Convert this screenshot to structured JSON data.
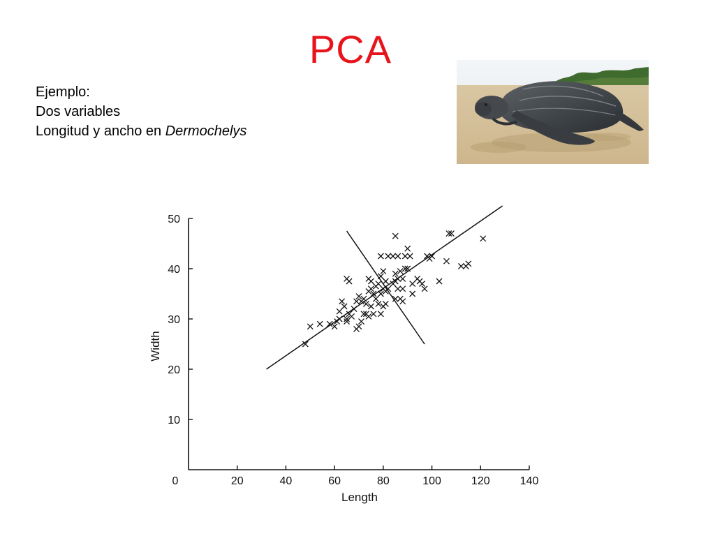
{
  "slide": {
    "title": "PCA",
    "intro": {
      "line1": "Ejemplo:",
      "line2": "Dos variables",
      "line3_prefix": "Longitud y ancho en ",
      "line3_italic": "Dermochelys"
    },
    "title_color": "#e8141c"
  },
  "photo": {
    "icon": "leatherback-turtle-photo"
  },
  "chart_data": {
    "type": "scatter",
    "title": "",
    "xlabel": "Length",
    "ylabel": "Width",
    "xlim": [
      0,
      140
    ],
    "ylim": [
      0,
      50
    ],
    "x_ticks": [
      0,
      20,
      40,
      60,
      80,
      100,
      120,
      140
    ],
    "y_ticks": [
      10,
      20,
      30,
      40,
      50
    ],
    "grid": false,
    "marker": "x",
    "points": [
      [
        48,
        25
      ],
      [
        50,
        28.5
      ],
      [
        54,
        29
      ],
      [
        58,
        29
      ],
      [
        60,
        28.5
      ],
      [
        61,
        29.5
      ],
      [
        62,
        30
      ],
      [
        62,
        31.5
      ],
      [
        63,
        33.5
      ],
      [
        64,
        32.5
      ],
      [
        65,
        30
      ],
      [
        65,
        29.5
      ],
      [
        66,
        31
      ],
      [
        65,
        38
      ],
      [
        66,
        37.5
      ],
      [
        67,
        30.5
      ],
      [
        68,
        32
      ],
      [
        69,
        28
      ],
      [
        69,
        33.5
      ],
      [
        70,
        28.5
      ],
      [
        70,
        34.5
      ],
      [
        71,
        29.5
      ],
      [
        71,
        33.5
      ],
      [
        72,
        31
      ],
      [
        72,
        34
      ],
      [
        73,
        31
      ],
      [
        73,
        33
      ],
      [
        74,
        30.5
      ],
      [
        74,
        35.5
      ],
      [
        74,
        38
      ],
      [
        75,
        32.5
      ],
      [
        75,
        36
      ],
      [
        75,
        37.5
      ],
      [
        76,
        31
      ],
      [
        76,
        35
      ],
      [
        77,
        34
      ],
      [
        77,
        36.5
      ],
      [
        78,
        33
      ],
      [
        78,
        37
      ],
      [
        79,
        31
      ],
      [
        79,
        35
      ],
      [
        79,
        38.5
      ],
      [
        79,
        42.5
      ],
      [
        80,
        32.5
      ],
      [
        80,
        36
      ],
      [
        80,
        39.5
      ],
      [
        81,
        33
      ],
      [
        81,
        35.5
      ],
      [
        81,
        37.5
      ],
      [
        82,
        36
      ],
      [
        82,
        42.5
      ],
      [
        84,
        37
      ],
      [
        84,
        42.5
      ],
      [
        85,
        34
      ],
      [
        85,
        37.5
      ],
      [
        85,
        39
      ],
      [
        85,
        46.5
      ],
      [
        86,
        36
      ],
      [
        86,
        38
      ],
      [
        86,
        42.5
      ],
      [
        87,
        34
      ],
      [
        87,
        39.5
      ],
      [
        88,
        33.5
      ],
      [
        88,
        36
      ],
      [
        88,
        38
      ],
      [
        89,
        40
      ],
      [
        89,
        42.5
      ],
      [
        90,
        40
      ],
      [
        90,
        44
      ],
      [
        91,
        42.5
      ],
      [
        92,
        35
      ],
      [
        92,
        37
      ],
      [
        94,
        38
      ],
      [
        95,
        37.5
      ],
      [
        96,
        37
      ],
      [
        97,
        36
      ],
      [
        98,
        42.5
      ],
      [
        99,
        42
      ],
      [
        100,
        42.5
      ],
      [
        103,
        37.5
      ],
      [
        106,
        41.5
      ],
      [
        107,
        47
      ],
      [
        108,
        47
      ],
      [
        112,
        40.5
      ],
      [
        114,
        40.5
      ],
      [
        115,
        41
      ],
      [
        121,
        46
      ]
    ],
    "lines": [
      {
        "name": "major-axis",
        "from": [
          32,
          20
        ],
        "to": [
          129,
          52.5
        ]
      },
      {
        "name": "minor-axis",
        "from": [
          65,
          47.5
        ],
        "to": [
          97,
          25
        ]
      }
    ]
  }
}
